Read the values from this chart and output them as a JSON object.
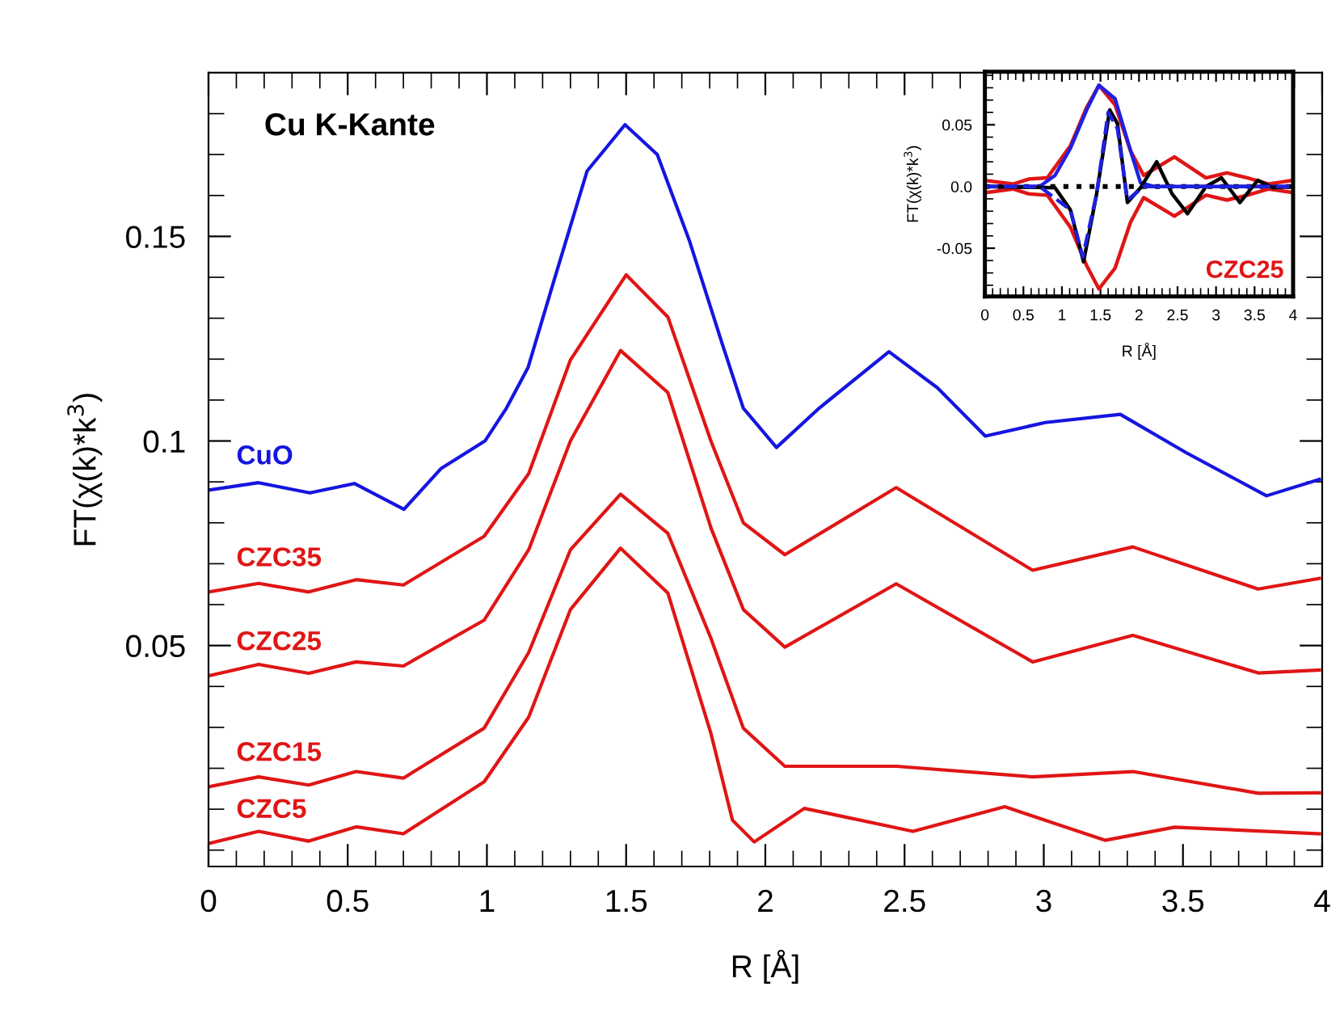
{
  "chart_data": [
    {
      "type": "line",
      "title": "Cu K-Kante",
      "xlabel": "R [Å]",
      "ylabel": "FT(χ(k)*k$^{3}$)",
      "xlim": [
        0,
        4
      ],
      "ylim": [
        -0.004,
        0.19
      ],
      "xticks": [
        0,
        0.5,
        1,
        1.5,
        2,
        2.5,
        3,
        3.5,
        4
      ],
      "yticks": [
        0.05,
        0.1,
        0.15
      ],
      "grid": false,
      "legend": false,
      "series": [
        {
          "name": "CuO",
          "color": "#1515e0",
          "x": [
            0,
            0.18,
            0.364,
            0.524,
            0.702,
            0.836,
            0.993,
            1.07,
            1.148,
            1.243,
            1.36,
            1.496,
            1.612,
            1.728,
            1.844,
            1.921,
            2.04,
            2.193,
            2.444,
            2.618,
            2.79,
            3.005,
            3.275,
            3.51,
            3.8,
            3.99
          ],
          "values": [
            0.088,
            0.0898,
            0.0873,
            0.0896,
            0.0833,
            0.0933,
            0.1,
            0.108,
            0.118,
            0.1397,
            0.166,
            0.1773,
            0.17,
            0.1488,
            0.124,
            0.108,
            0.0984,
            0.108,
            0.1218,
            0.113,
            0.1012,
            0.1045,
            0.1065,
            0.0972,
            0.0866,
            0.0906
          ]
        },
        {
          "name": "CZC35",
          "color": "#e01515",
          "x": [
            0,
            0.18,
            0.36,
            0.53,
            0.7,
            0.99,
            1.15,
            1.3,
            1.5,
            1.65,
            1.805,
            1.921,
            2.07,
            2.47,
            2.96,
            3.32,
            3.77,
            3.99
          ],
          "values": [
            0.0631,
            0.0652,
            0.0631,
            0.0661,
            0.0648,
            0.0767,
            0.092,
            0.1198,
            0.1406,
            0.1303,
            0.0999,
            0.08,
            0.0722,
            0.0886,
            0.0684,
            0.0741,
            0.0638,
            0.0664
          ]
        },
        {
          "name": "CZC25",
          "color": "#e01515",
          "x": [
            0,
            0.18,
            0.36,
            0.53,
            0.7,
            0.99,
            1.15,
            1.3,
            1.48,
            1.65,
            1.805,
            1.921,
            2.07,
            2.47,
            2.96,
            3.32,
            3.77,
            3.99
          ],
          "values": [
            0.0426,
            0.0454,
            0.0432,
            0.046,
            0.045,
            0.0562,
            0.0734,
            0.1,
            0.1221,
            0.1118,
            0.0787,
            0.0588,
            0.0496,
            0.0651,
            0.046,
            0.0525,
            0.0433,
            0.044
          ]
        },
        {
          "name": "CZC15",
          "color": "#e01515",
          "x": [
            0,
            0.18,
            0.36,
            0.53,
            0.7,
            0.99,
            1.15,
            1.3,
            1.48,
            1.65,
            1.805,
            1.921,
            2.07,
            2.47,
            2.96,
            3.32,
            3.77,
            3.99
          ],
          "values": [
            0.0155,
            0.0179,
            0.0159,
            0.0192,
            0.0176,
            0.0298,
            0.0483,
            0.0734,
            0.087,
            0.0774,
            0.0517,
            0.0298,
            0.0205,
            0.0205,
            0.0179,
            0.0192,
            0.0139,
            0.014
          ]
        },
        {
          "name": "CZC5",
          "color": "#e01515",
          "x": [
            0,
            0.18,
            0.36,
            0.53,
            0.7,
            0.99,
            1.15,
            1.3,
            1.48,
            1.65,
            1.805,
            1.882,
            1.96,
            2.14,
            2.53,
            2.86,
            3.22,
            3.47,
            3.99
          ],
          "values": [
            0.0016,
            0.0046,
            0.0022,
            0.0057,
            0.004,
            0.0167,
            0.0325,
            0.0588,
            0.0738,
            0.0628,
            0.0284,
            0.0073,
            0.002,
            0.0102,
            0.0046,
            0.0106,
            0.0024,
            0.0056,
            0.004
          ]
        }
      ]
    },
    {
      "type": "line",
      "xlabel": "R [Å]",
      "ylabel": "FT(χ(k)*k$^{3}$)",
      "xlim": [
        0,
        4
      ],
      "ylim": [
        -0.089,
        0.093
      ],
      "xticks": [
        0,
        0.5,
        1,
        1.5,
        2,
        2.5,
        3,
        3.5,
        4
      ],
      "yticks": [
        {
          "value": -0.05,
          "label": "-0.05"
        },
        {
          "value": 0,
          "label": "0.0"
        },
        0.05
      ],
      "grid": false,
      "legend": false,
      "annotations": [
        "CZC25"
      ],
      "ref_lines": [
        {
          "axis": "y",
          "value": 0,
          "color": "#000000",
          "line_style": "dotted"
        }
      ],
      "series": [
        {
          "color": "#e01515",
          "x": [
            0,
            0.37,
            0.57,
            0.81,
            1.11,
            1.32,
            1.48,
            1.69,
            1.89,
            2.06,
            2.46,
            2.87,
            3.14,
            3.41,
            3.68,
            4
          ],
          "values": [
            0.005,
            0.002,
            0.006,
            0.007,
            0.033,
            0.064,
            0.082,
            0.066,
            0.029,
            0.009,
            0.024,
            0.007,
            0.011,
            0.007,
            0.002,
            0.005
          ]
        },
        {
          "color": "#e01515",
          "x": [
            0,
            0.37,
            0.57,
            0.81,
            1.11,
            1.32,
            1.48,
            1.69,
            1.89,
            2.06,
            2.46,
            2.87,
            3.14,
            3.41,
            3.68,
            4
          ],
          "values": [
            -0.005,
            -0.002,
            -0.006,
            -0.007,
            -0.033,
            -0.064,
            -0.083,
            -0.066,
            -0.029,
            -0.009,
            -0.024,
            -0.007,
            -0.011,
            -0.007,
            -0.002,
            -0.005
          ]
        },
        {
          "color": "#2020e0",
          "x": [
            0,
            0.71,
            0.91,
            1.11,
            1.32,
            1.48,
            1.69,
            1.89,
            2.02,
            2.19,
            4
          ],
          "values": [
            0,
            0,
            0.009,
            0.031,
            0.062,
            0.082,
            0.071,
            0.029,
            0.003,
            0,
            0
          ]
        },
        {
          "color": "#000000",
          "x": [
            0,
            0.91,
            1.11,
            1.28,
            1.45,
            1.62,
            1.72,
            1.85,
            2.02,
            2.23,
            2.43,
            2.63,
            2.87,
            3.07,
            3.31,
            3.54,
            3.74,
            4
          ],
          "values": [
            0,
            -0.001,
            -0.019,
            -0.061,
            -0.006,
            0.062,
            0.051,
            -0.013,
            -0.001,
            0.02,
            -0.006,
            -0.022,
            0,
            0.007,
            -0.013,
            0.005,
            -0.001,
            0
          ]
        },
        {
          "color": "#2020e0",
          "line_style": "dashed",
          "x": [
            0,
            0.71,
            1.11,
            1.27,
            1.45,
            1.6,
            1.72,
            1.85,
            2.06,
            4
          ],
          "values": [
            0,
            0,
            -0.019,
            -0.057,
            -0.006,
            0.06,
            0.047,
            -0.011,
            0,
            0
          ]
        }
      ]
    }
  ]
}
